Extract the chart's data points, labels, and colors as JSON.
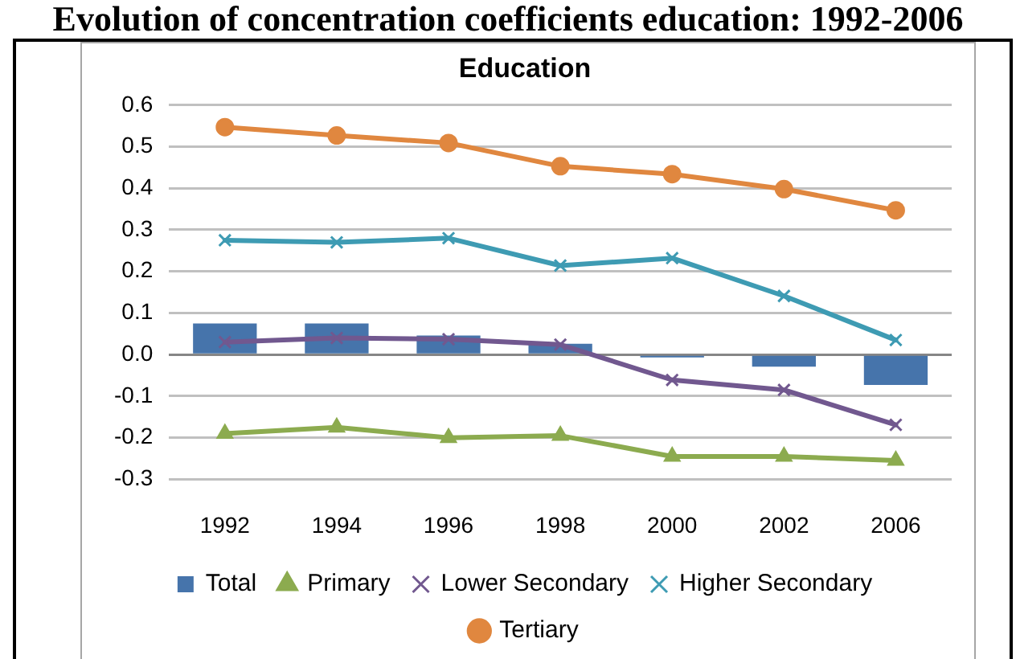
{
  "chart_data": {
    "type": "line",
    "title": "Evolution of concentration coefficients education: 1992-2006",
    "subtitle": "Education",
    "categories": [
      "1992",
      "1994",
      "1996",
      "1998",
      "2000",
      "2002",
      "2006"
    ],
    "series": [
      {
        "name": "Total",
        "type": "bar",
        "color": "#4674ab",
        "values": [
          0.075,
          0.075,
          0.046,
          0.026,
          -0.007,
          -0.029,
          -0.073
        ]
      },
      {
        "name": "Primary",
        "color": "#8cab4f",
        "marker": "triangle",
        "values": [
          -0.19,
          -0.175,
          -0.2,
          -0.195,
          -0.245,
          -0.245,
          -0.255
        ]
      },
      {
        "name": "Lower Secondary",
        "color": "#71588f",
        "marker": "cross",
        "values": [
          0.03,
          0.04,
          0.037,
          0.024,
          -0.061,
          -0.085,
          -0.169
        ]
      },
      {
        "name": "Higher Secondary",
        "color": "#3e9bb3",
        "marker": "cross",
        "values": [
          0.275,
          0.27,
          0.28,
          0.214,
          0.232,
          0.141,
          0.035
        ]
      },
      {
        "name": "Tertiary",
        "color": "#e0873f",
        "marker": "circle",
        "values": [
          0.547,
          0.527,
          0.509,
          0.453,
          0.434,
          0.398,
          0.347
        ]
      }
    ],
    "ylim": [
      -0.3,
      0.6
    ],
    "yticks": [
      -0.3,
      -0.2,
      -0.1,
      {
        "value": 0,
        "label": "0.0"
      },
      0.1,
      0.2,
      0.3,
      0.4,
      0.5,
      0.6
    ],
    "grid": "y",
    "legend": "bottom"
  }
}
